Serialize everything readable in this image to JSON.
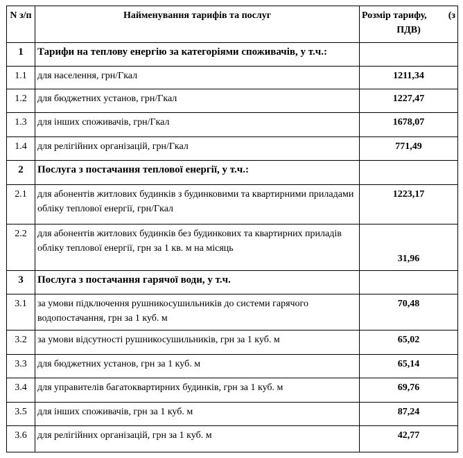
{
  "header": {
    "num": "N з/п",
    "name": "Найменування тарифів та послуг",
    "value_l": "Розмір тарифу,",
    "value_r": "(з",
    "value_2": "ПДВ)"
  },
  "rows": [
    {
      "num": "1",
      "name": "Тарифи на теплову енергію за категоріями споживачів, у т.ч.:",
      "value": "",
      "section": true
    },
    {
      "num": "1.1",
      "name": "для населення, грн/Гкал",
      "value": "1211,34"
    },
    {
      "num": "1.2",
      "name": "для бюджетних установ, грн/Гкал",
      "value": "1227,47"
    },
    {
      "num": "1.3",
      "name": "для інших споживачів, грн/Гкал",
      "value": "1678,07"
    },
    {
      "num": "1.4",
      "name": "для релігійних організацій, грн/Гкал",
      "value": "771,49"
    },
    {
      "num": "2",
      "name": "Послуга з постачання теплової енергії, у т.ч.:",
      "value": "",
      "section": true
    },
    {
      "num": "2.1",
      "name": "для абонентів житлових будинків з будинковими та квартирними приладами обліку теплової енергії, грн/Гкал",
      "value": "1223,17"
    },
    {
      "num": "2.2",
      "name": "для абонентів житлових будинків без будинкових та квартирних приладів обліку теплової енергії, грн за 1 кв. м на місяць",
      "value": "31,96"
    },
    {
      "num": "3",
      "name": "Послуга з постачання гарячої води, у т.ч.",
      "value": "",
      "section": true
    },
    {
      "num": "3.1",
      "name": "за умови підключення рушникосушильників до системи гарячого водопостачання, грн за 1 куб. м",
      "value": "70,48"
    },
    {
      "num": "3.2",
      "name": "за умови відсутності рушникосушильників, грн за 1 куб. м",
      "value": "65,02"
    },
    {
      "num": "3.3",
      "name": "для бюджетних установ, грн за 1 куб. м",
      "value": "65,14"
    },
    {
      "num": "3.4",
      "name": "для управителів багатоквартирних будинків, грн за 1 куб. м",
      "value": "69,76"
    },
    {
      "num": "3.5",
      "name": "для інших споживачів, грн за 1 куб. м",
      "value": "87,24"
    },
    {
      "num": "3.6",
      "name": "для релігійних організацій, грн за 1 куб. м",
      "value": "42,77"
    }
  ]
}
